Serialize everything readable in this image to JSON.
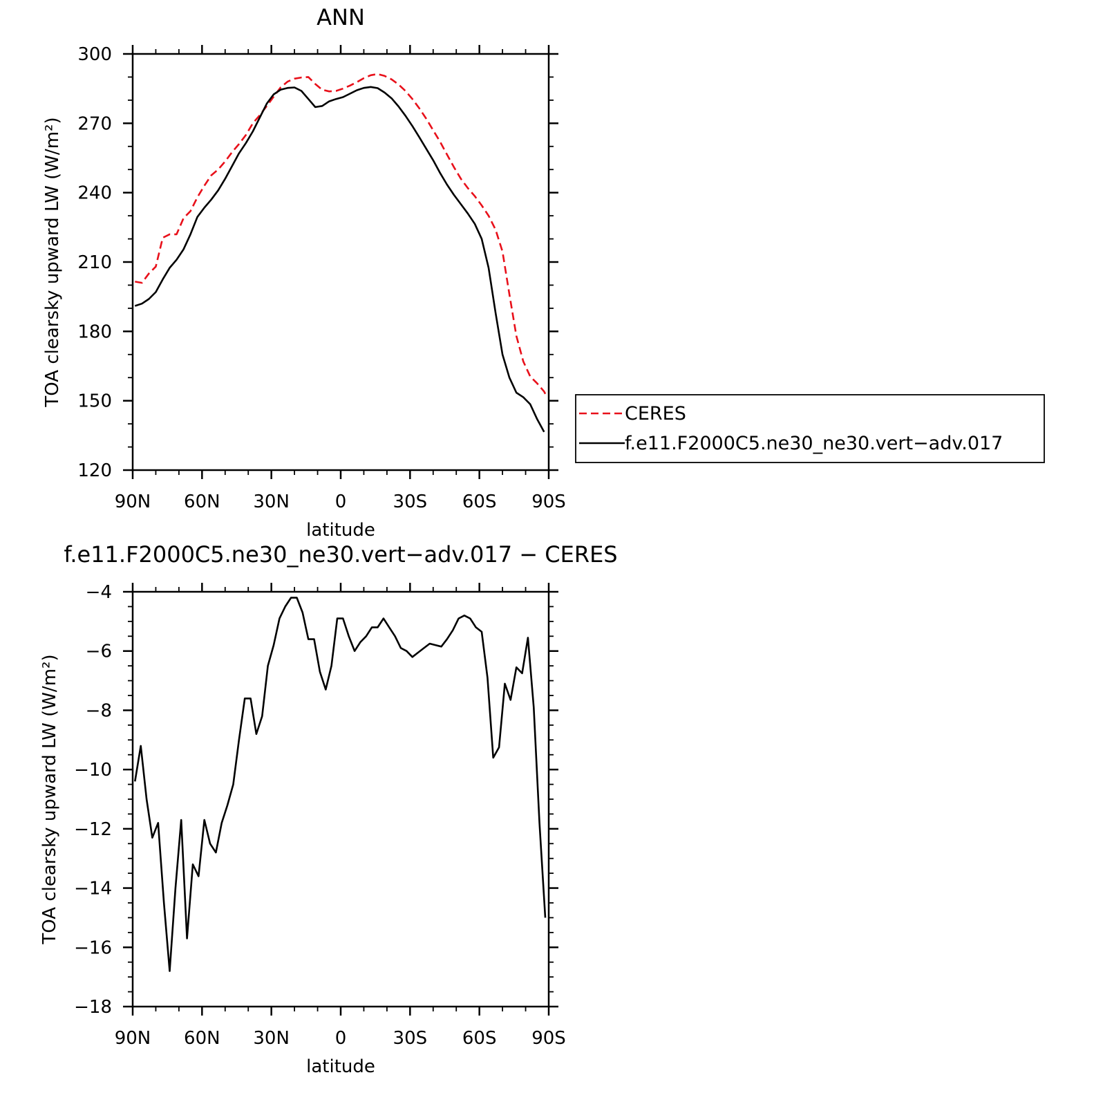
{
  "chart_data": [
    {
      "type": "line",
      "title": "ANN",
      "xlabel": "latitude",
      "ylabel": "TOA clearsky upward LW (W/m²)",
      "xlim": [
        90,
        -90
      ],
      "ylim": [
        120,
        300
      ],
      "x_ticks": [
        {
          "value": 90,
          "label": "90N"
        },
        {
          "value": 60,
          "label": "60N"
        },
        {
          "value": 30,
          "label": "30N"
        },
        {
          "value": 0,
          "label": "0"
        },
        {
          "value": -30,
          "label": "30S"
        },
        {
          "value": -60,
          "label": "60S"
        },
        {
          "value": -90,
          "label": "90S"
        }
      ],
      "y_ticks": [
        120,
        150,
        180,
        210,
        240,
        270,
        300
      ],
      "legend": {
        "placement": "right"
      },
      "series": [
        {
          "name": "CERES",
          "color": "#e8101a",
          "dash": "dashed",
          "points": [
            [
              89,
              201.5
            ],
            [
              86,
              201
            ],
            [
              83,
              205
            ],
            [
              80,
              208
            ],
            [
              77,
              220.5
            ],
            [
              74,
              222
            ],
            [
              71,
              222
            ],
            [
              68,
              229
            ],
            [
              65,
              232
            ],
            [
              62,
              238
            ],
            [
              59,
              243
            ],
            [
              56,
              247.5
            ],
            [
              53,
              250
            ],
            [
              50,
              253.5
            ],
            [
              47,
              257.5
            ],
            [
              44,
              261
            ],
            [
              41,
              265
            ],
            [
              38,
              270
            ],
            [
              35,
              273.5
            ],
            [
              32,
              277.5
            ],
            [
              29,
              281.5
            ],
            [
              26,
              285.5
            ],
            [
              23,
              288
            ],
            [
              20,
              289.3
            ],
            [
              17,
              289.8
            ],
            [
              14,
              290
            ],
            [
              11,
              287
            ],
            [
              8,
              284.5
            ],
            [
              5,
              283.8
            ],
            [
              2,
              284
            ],
            [
              -1,
              285
            ],
            [
              -4,
              286.3
            ],
            [
              -7,
              287.8
            ],
            [
              -10,
              289.5
            ],
            [
              -13,
              290.8
            ],
            [
              -16,
              291.3
            ],
            [
              -19,
              290.5
            ],
            [
              -22,
              289
            ],
            [
              -25,
              286.8
            ],
            [
              -28,
              284
            ],
            [
              -31,
              280.5
            ],
            [
              -34,
              276.5
            ],
            [
              -37,
              272
            ],
            [
              -40,
              267
            ],
            [
              -43,
              262
            ],
            [
              -46,
              256.5
            ],
            [
              -49,
              251
            ],
            [
              -52,
              246
            ],
            [
              -55,
              242
            ],
            [
              -58,
              238.5
            ],
            [
              -61,
              234.5
            ],
            [
              -64,
              230
            ],
            [
              -67,
              224
            ],
            [
              -70,
              214.5
            ],
            [
              -73,
              196
            ],
            [
              -76,
              178
            ],
            [
              -79,
              167
            ],
            [
              -82,
              160.5
            ],
            [
              -85,
              157.5
            ],
            [
              -88,
              154
            ],
            [
              -89,
              152
            ]
          ]
        },
        {
          "name": "f.e11.F2000C5.ne30_ne30.vert−adv.017",
          "color": "#000000",
          "dash": "solid",
          "points": [
            [
              89,
              191
            ],
            [
              86,
              192
            ],
            [
              83,
              194
            ],
            [
              80,
              197
            ],
            [
              77,
              202.5
            ],
            [
              74,
              207.5
            ],
            [
              71,
              211
            ],
            [
              68,
              215.5
            ],
            [
              65,
              222
            ],
            [
              62,
              229.5
            ],
            [
              59,
              233.5
            ],
            [
              56,
              237
            ],
            [
              53,
              241
            ],
            [
              50,
              246
            ],
            [
              47,
              251.5
            ],
            [
              44,
              257
            ],
            [
              41,
              261.5
            ],
            [
              38,
              266.5
            ],
            [
              35,
              272.5
            ],
            [
              32,
              278.5
            ],
            [
              29,
              282.5
            ],
            [
              26,
              284.5
            ],
            [
              23,
              285.3
            ],
            [
              20,
              285.5
            ],
            [
              17,
              284
            ],
            [
              14,
              280.5
            ],
            [
              11,
              277
            ],
            [
              8,
              277.5
            ],
            [
              5,
              279.5
            ],
            [
              2,
              280.5
            ],
            [
              -1,
              281.3
            ],
            [
              -4,
              282.8
            ],
            [
              -7,
              284.3
            ],
            [
              -10,
              285.3
            ],
            [
              -13,
              285.7
            ],
            [
              -16,
              285.2
            ],
            [
              -19,
              283.3
            ],
            [
              -22,
              280.8
            ],
            [
              -25,
              277.3
            ],
            [
              -28,
              273.3
            ],
            [
              -31,
              268.8
            ],
            [
              -34,
              264
            ],
            [
              -37,
              259
            ],
            [
              -40,
              254
            ],
            [
              -43,
              248.5
            ],
            [
              -46,
              243.5
            ],
            [
              -49,
              239
            ],
            [
              -52,
              235
            ],
            [
              -55,
              231
            ],
            [
              -58,
              226.5
            ],
            [
              -61,
              220
            ],
            [
              -64,
              207.5
            ],
            [
              -67,
              188
            ],
            [
              -70,
              170
            ],
            [
              -73,
              160
            ],
            [
              -76,
              153.5
            ],
            [
              -79,
              151.5
            ],
            [
              -82,
              148.5
            ],
            [
              -85,
              142
            ],
            [
              -88,
              136.5
            ]
          ]
        }
      ]
    },
    {
      "type": "line",
      "title": "f.e11.F2000C5.ne30_ne30.vert−adv.017 − CERES",
      "xlabel": "latitude",
      "ylabel": "TOA clearsky upward LW (W/m²)",
      "xlim": [
        90,
        -90
      ],
      "ylim": [
        -18,
        -4
      ],
      "x_ticks": [
        {
          "value": 90,
          "label": "90N"
        },
        {
          "value": 60,
          "label": "60N"
        },
        {
          "value": 30,
          "label": "30N"
        },
        {
          "value": 0,
          "label": "0"
        },
        {
          "value": -30,
          "label": "30S"
        },
        {
          "value": -60,
          "label": "60S"
        },
        {
          "value": -90,
          "label": "90S"
        }
      ],
      "y_ticks": [
        -18,
        -16,
        -14,
        -12,
        -10,
        -8,
        -6,
        -4
      ],
      "series": [
        {
          "color": "#000000",
          "dash": "solid",
          "points": [
            [
              89,
              -10.4
            ],
            [
              86.5,
              -9.2
            ],
            [
              84,
              -11
            ],
            [
              81.5,
              -12.3
            ],
            [
              79,
              -11.8
            ],
            [
              76.5,
              -14.5
            ],
            [
              74,
              -16.8
            ],
            [
              71.5,
              -14
            ],
            [
              69,
              -11.7
            ],
            [
              66.5,
              -15.7
            ],
            [
              64,
              -13.2
            ],
            [
              61.5,
              -13.6
            ],
            [
              59,
              -11.7
            ],
            [
              56.5,
              -12.5
            ],
            [
              54,
              -12.8
            ],
            [
              51.5,
              -11.8
            ],
            [
              49,
              -11.2
            ],
            [
              46.5,
              -10.5
            ],
            [
              44,
              -9
            ],
            [
              41.5,
              -7.6
            ],
            [
              39,
              -7.6
            ],
            [
              36.5,
              -8.8
            ],
            [
              34,
              -8.2
            ],
            [
              31.5,
              -6.5
            ],
            [
              29,
              -5.8
            ],
            [
              26.5,
              -4.9
            ],
            [
              24,
              -4.5
            ],
            [
              21.5,
              -4.2
            ],
            [
              19,
              -4.2
            ],
            [
              16.5,
              -4.7
            ],
            [
              14,
              -5.6
            ],
            [
              11.5,
              -5.6
            ],
            [
              9,
              -6.7
            ],
            [
              6.5,
              -7.3
            ],
            [
              4,
              -6.5
            ],
            [
              1.5,
              -4.9
            ],
            [
              -1,
              -4.9
            ],
            [
              -3.5,
              -5.5
            ],
            [
              -6,
              -6
            ],
            [
              -8.5,
              -5.7
            ],
            [
              -11,
              -5.5
            ],
            [
              -13.5,
              -5.2
            ],
            [
              -16,
              -5.2
            ],
            [
              -18.5,
              -4.9
            ],
            [
              -21,
              -5.2
            ],
            [
              -23.5,
              -5.5
            ],
            [
              -26,
              -5.9
            ],
            [
              -28.5,
              -6
            ],
            [
              -31,
              -6.2
            ],
            [
              -33.5,
              -6.05
            ],
            [
              -36,
              -5.9
            ],
            [
              -38.5,
              -5.75
            ],
            [
              -41,
              -5.8
            ],
            [
              -43.5,
              -5.85
            ],
            [
              -46,
              -5.6
            ],
            [
              -48.5,
              -5.3
            ],
            [
              -51,
              -4.9
            ],
            [
              -53.5,
              -4.8
            ],
            [
              -56,
              -4.9
            ],
            [
              -58.5,
              -5.2
            ],
            [
              -61,
              -5.35
            ],
            [
              -63.5,
              -6.9
            ],
            [
              -66,
              -9.6
            ],
            [
              -68.5,
              -9.25
            ],
            [
              -71,
              -7.1
            ],
            [
              -73.5,
              -7.65
            ],
            [
              -76,
              -6.55
            ],
            [
              -78.5,
              -6.75
            ],
            [
              -81,
              -5.55
            ],
            [
              -83.5,
              -7.9
            ],
            [
              -86,
              -11.8
            ],
            [
              -88.5,
              -15
            ]
          ]
        }
      ]
    }
  ]
}
